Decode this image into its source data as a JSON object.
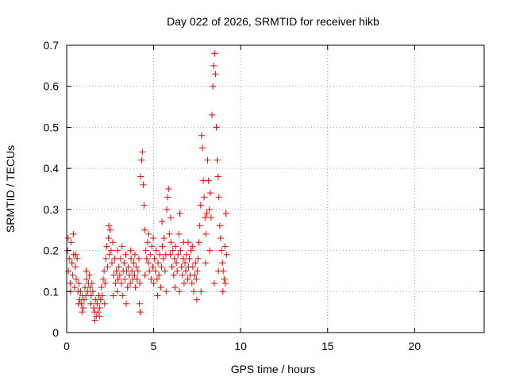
{
  "chart_data": {
    "type": "scatter",
    "title": "Day 022 of 2026, SRMTID for receiver hikb",
    "xlabel": "GPS time / hours",
    "ylabel": "SRMTID / TECUs",
    "xlim": [
      0,
      24
    ],
    "ylim": [
      0,
      0.7
    ],
    "xticks": [
      0,
      5,
      10,
      15,
      20
    ],
    "xtick_labels": [
      "0",
      "5",
      "10",
      "15",
      "20"
    ],
    "yticks": [
      0,
      0.1,
      0.2,
      0.3,
      0.4,
      0.5,
      0.6,
      0.7
    ],
    "ytick_labels": [
      "0",
      "0.1",
      "0.2",
      "0.3",
      "0.4",
      "0.5",
      "0.6",
      "0.7"
    ],
    "grid": true,
    "marker": "+",
    "series": [
      {
        "name": "SRMTID",
        "color": "#ff0000",
        "points": [
          [
            0.05,
            0.2
          ],
          [
            0.1,
            0.15
          ],
          [
            0.15,
            0.18
          ],
          [
            0.2,
            0.12
          ],
          [
            0.25,
            0.22
          ],
          [
            0.3,
            0.17
          ],
          [
            0.35,
            0.14
          ],
          [
            0.4,
            0.19
          ],
          [
            0.45,
            0.11
          ],
          [
            0.5,
            0.16
          ],
          [
            0.55,
            0.13
          ],
          [
            0.6,
            0.18
          ],
          [
            0.65,
            0.1
          ],
          [
            0.7,
            0.12
          ],
          [
            0.75,
            0.08
          ],
          [
            0.8,
            0.1
          ],
          [
            0.85,
            0.07
          ],
          [
            0.9,
            0.09
          ],
          [
            0.95,
            0.06
          ],
          [
            1.0,
            0.08
          ],
          [
            1.05,
            0.11
          ],
          [
            1.1,
            0.09
          ],
          [
            1.15,
            0.13
          ],
          [
            1.2,
            0.1
          ],
          [
            1.25,
            0.12
          ],
          [
            1.3,
            0.14
          ],
          [
            1.35,
            0.11
          ],
          [
            1.4,
            0.09
          ],
          [
            1.45,
            0.12
          ],
          [
            1.5,
            0.1
          ],
          [
            1.55,
            0.06
          ],
          [
            1.6,
            0.05
          ],
          [
            1.65,
            0.08
          ],
          [
            1.7,
            0.04
          ],
          [
            1.75,
            0.07
          ],
          [
            1.8,
            0.05
          ],
          [
            1.85,
            0.09
          ],
          [
            1.9,
            0.06
          ],
          [
            1.95,
            0.08
          ],
          [
            2.0,
            0.11
          ],
          [
            2.05,
            0.09
          ],
          [
            2.1,
            0.13
          ],
          [
            2.15,
            0.15
          ],
          [
            2.2,
            0.12
          ],
          [
            2.25,
            0.18
          ],
          [
            2.3,
            0.21
          ],
          [
            2.35,
            0.16
          ],
          [
            2.4,
            0.23
          ],
          [
            2.45,
            0.19
          ],
          [
            2.5,
            0.25
          ],
          [
            2.55,
            0.2
          ],
          [
            2.6,
            0.17
          ],
          [
            2.65,
            0.22
          ],
          [
            2.7,
            0.14
          ],
          [
            2.75,
            0.18
          ],
          [
            2.8,
            0.12
          ],
          [
            2.85,
            0.15
          ],
          [
            2.9,
            0.1
          ],
          [
            2.95,
            0.13
          ],
          [
            3.0,
            0.16
          ],
          [
            3.05,
            0.14
          ],
          [
            3.1,
            0.18
          ],
          [
            3.15,
            0.12
          ],
          [
            3.2,
            0.09
          ],
          [
            3.25,
            0.15
          ],
          [
            3.3,
            0.17
          ],
          [
            3.35,
            0.13
          ],
          [
            3.4,
            0.19
          ],
          [
            3.45,
            0.15
          ],
          [
            3.5,
            0.11
          ],
          [
            3.55,
            0.16
          ],
          [
            3.6,
            0.14
          ],
          [
            3.65,
            0.12
          ],
          [
            3.7,
            0.18
          ],
          [
            3.75,
            0.15
          ],
          [
            3.8,
            0.13
          ],
          [
            3.85,
            0.17
          ],
          [
            3.9,
            0.14
          ],
          [
            3.95,
            0.11
          ],
          [
            4.0,
            0.16
          ],
          [
            4.05,
            0.13
          ],
          [
            4.1,
            0.15
          ],
          [
            4.15,
            0.18
          ],
          [
            4.2,
            0.12
          ],
          [
            4.25,
            0.38
          ],
          [
            4.3,
            0.42
          ],
          [
            4.35,
            0.44
          ],
          [
            4.4,
            0.36
          ],
          [
            4.45,
            0.31
          ],
          [
            4.5,
            0.14
          ],
          [
            4.55,
            0.2
          ],
          [
            4.6,
            0.18
          ],
          [
            4.65,
            0.22
          ],
          [
            4.7,
            0.17
          ],
          [
            4.75,
            0.15
          ],
          [
            4.8,
            0.19
          ],
          [
            4.85,
            0.13
          ],
          [
            4.9,
            0.21
          ],
          [
            4.95,
            0.16
          ],
          [
            5.0,
            0.12
          ],
          [
            5.05,
            0.18
          ],
          [
            5.1,
            0.15
          ],
          [
            5.15,
            0.2
          ],
          [
            5.2,
            0.13
          ],
          [
            5.25,
            0.17
          ],
          [
            5.3,
            0.14
          ],
          [
            5.35,
            0.19
          ],
          [
            5.4,
            0.11
          ],
          [
            5.45,
            0.16
          ],
          [
            5.5,
            0.21
          ],
          [
            5.55,
            0.18
          ],
          [
            5.6,
            0.23
          ],
          [
            5.65,
            0.15
          ],
          [
            5.7,
            0.19
          ],
          [
            5.75,
            0.3
          ],
          [
            5.8,
            0.33
          ],
          [
            5.85,
            0.35
          ],
          [
            5.9,
            0.24
          ],
          [
            5.95,
            0.19
          ],
          [
            6.0,
            0.22
          ],
          [
            6.05,
            0.16
          ],
          [
            6.1,
            0.2
          ],
          [
            6.15,
            0.14
          ],
          [
            6.2,
            0.18
          ],
          [
            6.25,
            0.21
          ],
          [
            6.3,
            0.17
          ],
          [
            6.35,
            0.15
          ],
          [
            6.4,
            0.19
          ],
          [
            6.45,
            0.24
          ],
          [
            6.5,
            0.29
          ],
          [
            6.55,
            0.2
          ],
          [
            6.6,
            0.16
          ],
          [
            6.65,
            0.14
          ],
          [
            6.7,
            0.18
          ],
          [
            6.75,
            0.12
          ],
          [
            6.8,
            0.17
          ],
          [
            6.85,
            0.15
          ],
          [
            6.9,
            0.19
          ],
          [
            6.95,
            0.13
          ],
          [
            7.0,
            0.16
          ],
          [
            7.05,
            0.18
          ],
          [
            7.1,
            0.14
          ],
          [
            7.15,
            0.2
          ],
          [
            7.2,
            0.12
          ],
          [
            7.25,
            0.16
          ],
          [
            7.3,
            0.1
          ],
          [
            7.35,
            0.14
          ],
          [
            7.4,
            0.17
          ],
          [
            7.45,
            0.13
          ],
          [
            7.5,
            0.15
          ],
          [
            7.55,
            0.18
          ],
          [
            7.6,
            0.22
          ],
          [
            7.65,
            0.26
          ],
          [
            7.7,
            0.31
          ],
          [
            7.75,
            0.48
          ],
          [
            7.8,
            0.45
          ],
          [
            7.85,
            0.37
          ],
          [
            7.9,
            0.33
          ],
          [
            7.95,
            0.28
          ],
          [
            8.0,
            0.24
          ],
          [
            8.05,
            0.29
          ],
          [
            8.1,
            0.42
          ],
          [
            8.15,
            0.37
          ],
          [
            8.2,
            0.3
          ],
          [
            8.25,
            0.34
          ],
          [
            8.3,
            0.28
          ],
          [
            8.35,
            0.53
          ],
          [
            8.4,
            0.6
          ],
          [
            8.45,
            0.65
          ],
          [
            8.5,
            0.68
          ],
          [
            8.55,
            0.63
          ],
          [
            8.6,
            0.5
          ],
          [
            8.65,
            0.42
          ],
          [
            8.7,
            0.38
          ],
          [
            8.75,
            0.33
          ],
          [
            8.8,
            0.26
          ],
          [
            8.85,
            0.23
          ],
          [
            8.9,
            0.2
          ],
          [
            8.95,
            0.17
          ],
          [
            9.0,
            0.15
          ],
          [
            9.05,
            0.13
          ],
          [
            9.1,
            0.21
          ],
          [
            9.15,
            0.29
          ],
          [
            9.2,
            0.19
          ],
          [
            0.08,
            0.23
          ],
          [
            0.22,
            0.1
          ],
          [
            0.38,
            0.24
          ],
          [
            0.52,
            0.19
          ],
          [
            0.68,
            0.07
          ],
          [
            0.88,
            0.05
          ],
          [
            1.12,
            0.15
          ],
          [
            1.38,
            0.07
          ],
          [
            1.62,
            0.03
          ],
          [
            1.88,
            0.04
          ],
          [
            2.18,
            0.07
          ],
          [
            2.42,
            0.26
          ],
          [
            2.68,
            0.09
          ],
          [
            2.92,
            0.2
          ],
          [
            3.18,
            0.21
          ],
          [
            3.42,
            0.07
          ],
          [
            3.68,
            0.2
          ],
          [
            3.92,
            0.19
          ],
          [
            4.18,
            0.07
          ],
          [
            4.22,
            0.05
          ],
          [
            4.48,
            0.25
          ],
          [
            4.72,
            0.24
          ],
          [
            4.98,
            0.23
          ],
          [
            5.22,
            0.09
          ],
          [
            5.48,
            0.27
          ],
          [
            5.72,
            0.1
          ],
          [
            5.98,
            0.28
          ],
          [
            6.22,
            0.11
          ],
          [
            6.48,
            0.1
          ],
          [
            6.72,
            0.22
          ],
          [
            6.98,
            0.22
          ],
          [
            7.22,
            0.21
          ],
          [
            7.48,
            0.08
          ],
          [
            7.72,
            0.1
          ],
          [
            7.98,
            0.17
          ],
          [
            8.22,
            0.2
          ],
          [
            8.48,
            0.12
          ],
          [
            8.72,
            0.15
          ],
          [
            8.98,
            0.1
          ],
          [
            9.12,
            0.12
          ]
        ]
      }
    ]
  }
}
